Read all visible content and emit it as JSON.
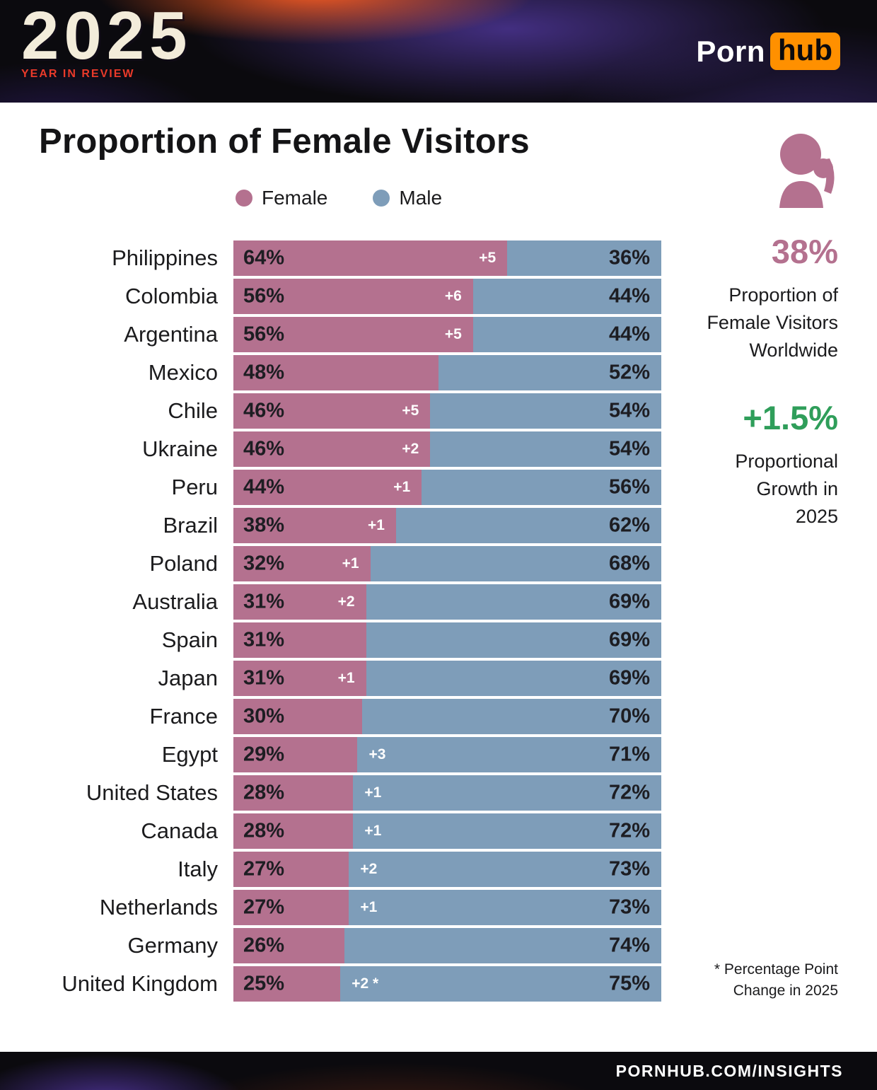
{
  "header": {
    "logo_year": "2025",
    "logo_subtitle": "YEAR IN REVIEW",
    "brand_part1": "Porn",
    "brand_part2": "hub",
    "brand_accent_color": "#ff9000"
  },
  "title": "Proportion of Female Visitors",
  "legend": {
    "female_label": "Female",
    "male_label": "Male",
    "female_color": "#b4718f",
    "male_color": "#7e9db9"
  },
  "icons": {
    "sidebar_icon": "female-head-silhouette-icon",
    "legend_female": "pink-dot",
    "legend_male": "blue-dot"
  },
  "chart_data": {
    "type": "bar",
    "orientation": "horizontal",
    "stacked": true,
    "title": "Proportion of Female Visitors",
    "value_suffix": "%",
    "xlim": [
      0,
      100
    ],
    "categories": [
      "Philippines",
      "Colombia",
      "Argentina",
      "Mexico",
      "Chile",
      "Ukraine",
      "Peru",
      "Brazil",
      "Poland",
      "Australia",
      "Spain",
      "Japan",
      "France",
      "Egypt",
      "United States",
      "Canada",
      "Italy",
      "Netherlands",
      "Germany",
      "United Kingdom"
    ],
    "series": [
      {
        "name": "Female",
        "color": "#b4718f",
        "values": [
          64,
          56,
          56,
          48,
          46,
          46,
          44,
          38,
          32,
          31,
          31,
          31,
          30,
          29,
          28,
          28,
          27,
          27,
          26,
          25
        ]
      },
      {
        "name": "Male",
        "color": "#7e9db9",
        "values": [
          36,
          44,
          44,
          52,
          54,
          54,
          56,
          62,
          68,
          69,
          69,
          69,
          70,
          71,
          72,
          72,
          73,
          73,
          74,
          75
        ]
      }
    ],
    "change_labels": [
      "+5",
      "+6",
      "+5",
      "",
      "+5",
      "+2",
      "+1",
      "+1",
      "+1",
      "+2",
      "",
      "+1",
      "",
      "+3",
      "+1",
      "+1",
      "+2",
      "+1",
      "",
      "+2 *"
    ],
    "legend_position": "top"
  },
  "stats": {
    "female_share": {
      "value": "38%",
      "caption": "Proportion of Female Visitors Worldwide",
      "color": "#b4718f"
    },
    "growth": {
      "value": "+1.5%",
      "caption": "Proportional Growth in 2025",
      "color": "#2f9e5a"
    }
  },
  "footnote": "* Percentage Point Change in 2025",
  "footer": {
    "url_label": "PORNHUB.COM/INSIGHTS"
  }
}
